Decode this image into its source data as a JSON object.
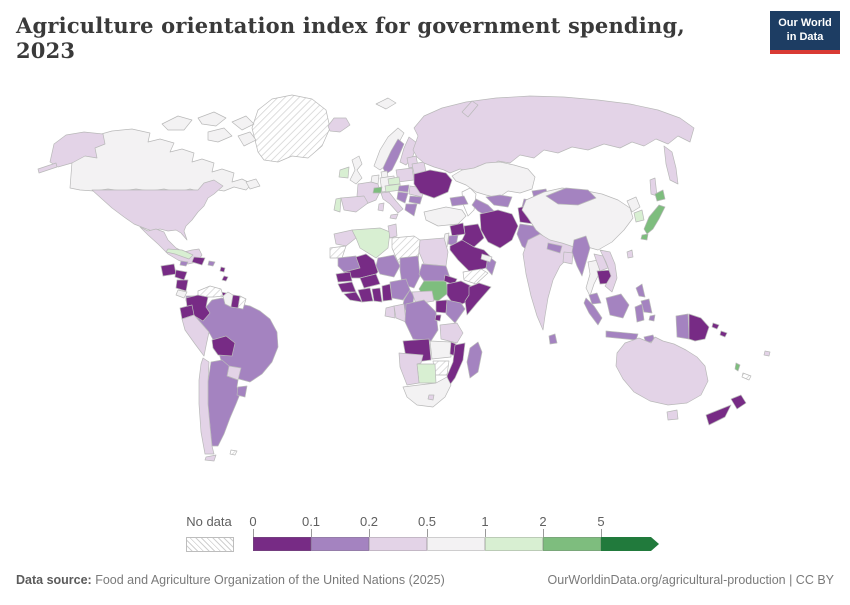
{
  "header": {
    "title": "Agriculture orientation index for government spending, 2023",
    "logo_line1": "Our World",
    "logo_line2": "in Data",
    "logo_bg": "#1d3d63",
    "logo_red": "#d93a34"
  },
  "legend": {
    "no_data_label": "No data",
    "ticks": [
      "0",
      "0.1",
      "0.2",
      "0.5",
      "1",
      "2",
      "5"
    ],
    "band_colors": [
      "#772b85",
      "#a483c0",
      "#e3d3e7",
      "#f3f2f3",
      "#d8efd2",
      "#7ebd7e",
      "#217a3c"
    ]
  },
  "footer": {
    "source_label": "Data source:",
    "source_text": "Food and Agriculture Organization of the United Nations (2025)",
    "link_text": "OurWorldinData.org/agricultural-production | CC BY"
  },
  "map": {
    "ocean": "#ffffff",
    "stroke": "#b9b9b9",
    "bands": {
      "b0": "#772b85",
      "b1": "#a483c0",
      "b2": "#e3d3e7",
      "b3": "#f3f2f3",
      "b4": "#d8efd2",
      "b5": "#7ebd7e",
      "b6": "#217a3c"
    },
    "countries": {
      "greenland": "no_data",
      "canada": "b3",
      "arctic_islands": "b3",
      "newfoundland": "b3",
      "alaska": "b2",
      "aleutians": "b2",
      "usa": "b2",
      "mexico": "b2",
      "guatemala": "b0",
      "honduras": "b0",
      "nicaragua": "b0",
      "costa_rica": "b3",
      "panama": "b1",
      "cuba": "b4",
      "jamaica": "b1",
      "hispaniola": "b0",
      "puerto_rico": "b1",
      "lesser_antilles": "b0",
      "trinidad": "b0",
      "colombia": "b0",
      "venezuela": "no_data",
      "guyana": "b3",
      "suriname": "b0",
      "french_guiana": "no_data",
      "ecuador": "b0",
      "peru": "b2",
      "brazil": "b1",
      "bolivia": "b0",
      "paraguay": "b2",
      "chile": "b2",
      "argentina": "b1",
      "uruguay": "b1",
      "tierra_del_fuego": "b2",
      "falklands": "no_data",
      "iceland": "b2",
      "svalbard": "b3",
      "ireland": "b4",
      "uk": "b3",
      "norway": "b3",
      "sweden": "b1",
      "finland": "b2",
      "denmark": "b3",
      "baltics": "b2",
      "belarus": "b2",
      "poland": "b2",
      "germany": "b3",
      "benelux": "b3",
      "france": "b2",
      "spain": "b2",
      "portugal": "b4",
      "switzerland": "b5",
      "czechia_slovakia": "b4",
      "austria": "b4",
      "italy": "b2",
      "sicily": "b2",
      "sardinia": "b2",
      "hungary": "b1",
      "romania": "b2",
      "serbia": "b1",
      "bulgaria": "b1",
      "greece": "b1",
      "ukraine": "b0",
      "russia": "b2",
      "kamchatka": "b2",
      "sakhalin": "b2",
      "novaya_zemlya": "b2",
      "kazakhstan": "b3",
      "uzbekistan": "b1",
      "turkmenistan": "b1",
      "kyrgyzstan": "b1",
      "tajikistan": "b1",
      "caucasus": "b1",
      "turkey": "b3",
      "syria": "b0",
      "israel_lebanon": "b3",
      "jordan": "b1",
      "iraq": "b0",
      "iran": "b0",
      "afghanistan": "b0",
      "pakistan": "b1",
      "saudi_arabia": "b0",
      "yemen": "no_data",
      "oman": "b1",
      "uae": "b3",
      "india": "b2",
      "nepal": "b1",
      "bangladesh": "b2",
      "sri_lanka": "b1",
      "myanmar": "b1",
      "thailand": "b3",
      "laos": "b2",
      "cambodia": "b0",
      "vietnam": "b2",
      "malaysia": "b1",
      "indonesia": "b1",
      "philippines": "b1",
      "china": "b3",
      "mongolia": "b1",
      "north_korea": "b3",
      "south_korea": "b4",
      "japan": "b5",
      "taiwan": "b2",
      "papua_new_guinea": "b0",
      "solomon_islands": "b0",
      "vanuatu": "b5",
      "fiji": "b2",
      "new_caledonia": "no_data",
      "australia": "b2",
      "tasmania": "b2",
      "new_zealand": "b0",
      "morocco": "b2",
      "western_sahara": "no_data",
      "algeria": "b4",
      "tunisia": "b2",
      "libya": "no_data",
      "egypt": "b2",
      "mauritania": "b1",
      "mali": "b0",
      "niger": "b1",
      "chad": "b1",
      "sudan": "b1",
      "south_sudan": "b5",
      "eritrea": "b0",
      "ethiopia": "b0",
      "somalia": "b0",
      "senegal": "b0",
      "guinea": "b0",
      "sierra_leone_liberia": "b0",
      "cote_divoire": "b0",
      "ghana": "b0",
      "togo_benin": "b0",
      "burkina_faso": "b0",
      "nigeria": "b1",
      "cameroon": "b1",
      "central_african_republic": "b2",
      "uganda": "b0",
      "kenya": "b1",
      "rwanda_burundi": "b0",
      "drc": "b1",
      "congo": "b2",
      "gabon": "b2",
      "tanzania": "b2",
      "angola": "b0",
      "zambia": "b3",
      "malawi": "b0",
      "mozambique": "b0",
      "zimbabwe": "no_data",
      "botswana": "b4",
      "namibia": "b2",
      "south_africa": "b3",
      "lesotho": "b2",
      "madagascar": "b1"
    }
  }
}
